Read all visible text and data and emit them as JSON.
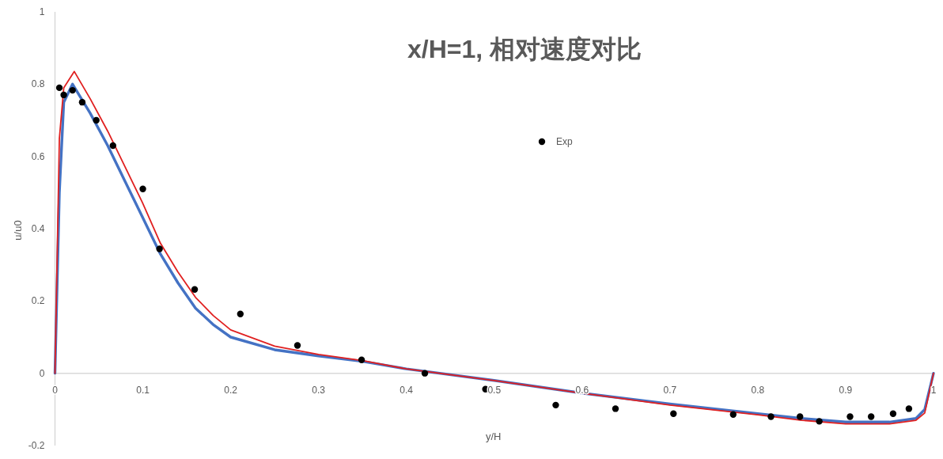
{
  "chart_data": {
    "type": "line",
    "title": "x/H=1, 相对速度对比",
    "xlabel": "y/H",
    "ylabel": "u/u0",
    "xlim": [
      0,
      1
    ],
    "ylim": [
      -0.2,
      1
    ],
    "xticks": [
      0,
      0.1,
      0.2,
      0.3,
      0.4,
      0.5,
      0.6,
      0.7,
      0.8,
      0.9,
      1
    ],
    "yticks": [
      -0.2,
      0,
      0.2,
      0.4,
      0.6,
      0.8,
      1
    ],
    "legend": "top right",
    "grid": false,
    "series": [
      {
        "name": "Exp",
        "type": "scatter",
        "marker": "circle",
        "color": "#000000",
        "x": [
          0.005,
          0.01,
          0.02,
          0.031,
          0.047,
          0.066,
          0.1,
          0.119,
          0.159,
          0.211,
          0.276,
          0.349,
          0.421,
          0.49,
          0.57,
          0.638,
          0.704,
          0.772,
          0.815,
          0.848,
          0.87,
          0.905,
          0.929,
          0.954,
          0.972
        ],
        "values": [
          0.79,
          0.77,
          0.783,
          0.75,
          0.7,
          0.63,
          0.51,
          0.344,
          0.232,
          0.164,
          0.077,
          0.037,
          0.0,
          -0.044,
          -0.088,
          -0.098,
          -0.112,
          -0.114,
          -0.12,
          -0.12,
          -0.133,
          -0.12,
          -0.12,
          -0.112,
          -0.098
        ]
      },
      {
        "color": "#4472c4",
        "x": [
          0,
          0.005,
          0.01,
          0.02,
          0.04,
          0.06,
          0.08,
          0.1,
          0.12,
          0.14,
          0.16,
          0.18,
          0.2,
          0.25,
          0.3,
          0.35,
          0.4,
          0.5,
          0.6,
          0.7,
          0.8,
          0.85,
          0.9,
          0.95,
          0.98,
          0.99,
          1
        ],
        "values": [
          0,
          0.5,
          0.75,
          0.8,
          0.72,
          0.63,
          0.53,
          0.43,
          0.33,
          0.25,
          0.18,
          0.135,
          0.1,
          0.065,
          0.048,
          0.033,
          0.012,
          -0.02,
          -0.055,
          -0.085,
          -0.112,
          -0.125,
          -0.135,
          -0.135,
          -0.125,
          -0.1,
          0
        ]
      },
      {
        "color": "#e02020",
        "x": [
          0,
          0.005,
          0.01,
          0.022,
          0.04,
          0.06,
          0.08,
          0.1,
          0.12,
          0.14,
          0.16,
          0.18,
          0.2,
          0.25,
          0.3,
          0.35,
          0.4,
          0.5,
          0.6,
          0.7,
          0.8,
          0.85,
          0.9,
          0.95,
          0.98,
          0.99,
          1
        ],
        "values": [
          0,
          0.65,
          0.79,
          0.835,
          0.76,
          0.67,
          0.57,
          0.47,
          0.36,
          0.28,
          0.21,
          0.16,
          0.12,
          0.075,
          0.052,
          0.035,
          0.012,
          -0.02,
          -0.055,
          -0.088,
          -0.115,
          -0.13,
          -0.14,
          -0.14,
          -0.13,
          -0.11,
          0
        ]
      }
    ]
  }
}
